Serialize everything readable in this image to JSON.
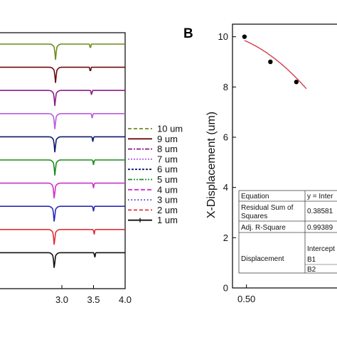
{
  "chart_data": [
    {
      "type": "line",
      "x": [
        2.0,
        2.1,
        2.2,
        2.3,
        2.4,
        2.5,
        2.6,
        2.7,
        2.8,
        2.85,
        2.88,
        2.9,
        2.95,
        3.0,
        3.1,
        3.2,
        3.3,
        3.4,
        3.45,
        3.5,
        3.55,
        3.6,
        3.7,
        3.8,
        3.9,
        4.0
      ],
      "xticks": [
        "3.0",
        "3.5",
        "4.0"
      ],
      "xlim": [
        2.0,
        4.0
      ],
      "legend_position": "right",
      "series": [
        {
          "name": "10 um",
          "color": "#6e8c1e",
          "dip_center": 2.9,
          "peak_center": 3.45
        },
        {
          "name": "9 um",
          "color": "#6b0c0c",
          "dip_center": 2.9,
          "peak_center": 3.45
        },
        {
          "name": "8 um",
          "color": "#8a1e8a",
          "dip_center": 2.89,
          "peak_center": 3.47
        },
        {
          "name": "7 um",
          "color": "#b85ce0",
          "dip_center": 2.89,
          "peak_center": 3.48
        },
        {
          "name": "6 um",
          "color": "#0c1a6e",
          "dip_center": 2.89,
          "peak_center": 3.49
        },
        {
          "name": "5 um",
          "color": "#1e8c1e",
          "dip_center": 2.89,
          "peak_center": 3.5
        },
        {
          "name": "4 um",
          "color": "#cc33cc",
          "dip_center": 2.88,
          "peak_center": 3.5
        },
        {
          "name": "3 um",
          "color": "#2a2ab8",
          "dip_center": 2.88,
          "peak_center": 3.5
        },
        {
          "name": "2 um",
          "color": "#e0303a",
          "dip_center": 2.88,
          "peak_center": 3.51
        },
        {
          "name": "1 um",
          "color": "#111111",
          "dip_center": 2.88,
          "peak_center": 3.52
        }
      ]
    },
    {
      "type": "scatter",
      "panel": "B",
      "ylabel": "X-Displacement (um)",
      "ylim": [
        0,
        10.5
      ],
      "yticks": [
        "0",
        "2",
        "4",
        "6",
        "8",
        "10"
      ],
      "xticks": [
        "0.50"
      ],
      "points": [
        {
          "x": 0.49,
          "y": 10.0
        },
        {
          "x": 0.62,
          "y": 9.0
        },
        {
          "x": 0.75,
          "y": 8.2
        }
      ],
      "fit_color": "#d83a4a",
      "table": [
        {
          "label": "Equation",
          "value": "y = Inter"
        },
        {
          "label": "Residual Sum of Squares",
          "value": "0.38581"
        },
        {
          "label": "Adj. R-Square",
          "value": "0.99389"
        },
        {
          "label": "Displacement",
          "value": "Intercept",
          "extra": [
            "B1",
            "B2"
          ]
        }
      ]
    }
  ]
}
